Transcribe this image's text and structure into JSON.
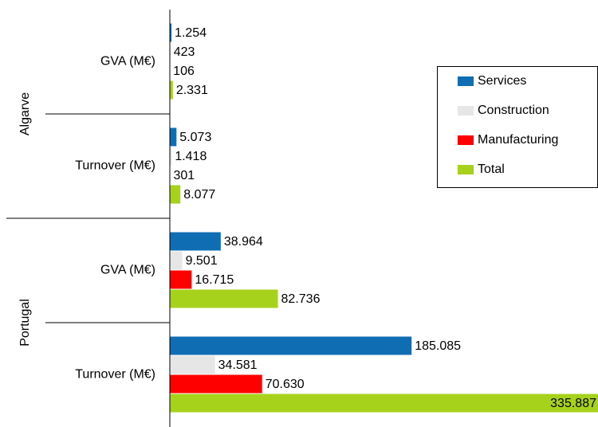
{
  "chart_data": {
    "type": "bar",
    "orientation": "horizontal",
    "groups": [
      "Algarve",
      "Portugal"
    ],
    "categories": [
      "GVA (M€)",
      "Turnover (M€)",
      "GVA (M€)",
      "Turnover (M€)"
    ],
    "series": [
      {
        "name": "Services",
        "color": "#0f6db4",
        "values": [
          1254,
          5073,
          38964,
          185085
        ],
        "value_labels": [
          "1.254",
          "5.073",
          "38.964",
          "185.085"
        ]
      },
      {
        "name": "Construction",
        "color": "#e6e6e6",
        "values": [
          423,
          1418,
          9501,
          34581
        ],
        "value_labels": [
          "423",
          "1.418",
          "9.501",
          "34.581"
        ]
      },
      {
        "name": "Manufacturing",
        "color": "#ff0000",
        "values": [
          106,
          301,
          16715,
          70630
        ],
        "value_labels": [
          "106",
          "301",
          "16.715",
          "70.630"
        ]
      },
      {
        "name": "Total",
        "color": "#a6d21b",
        "values": [
          2331,
          8077,
          82736,
          335887
        ],
        "value_labels": [
          "2.331",
          "8.077",
          "82.736",
          "335.887"
        ]
      }
    ],
    "xlim": [
      0,
      340000
    ],
    "legend": "right"
  }
}
